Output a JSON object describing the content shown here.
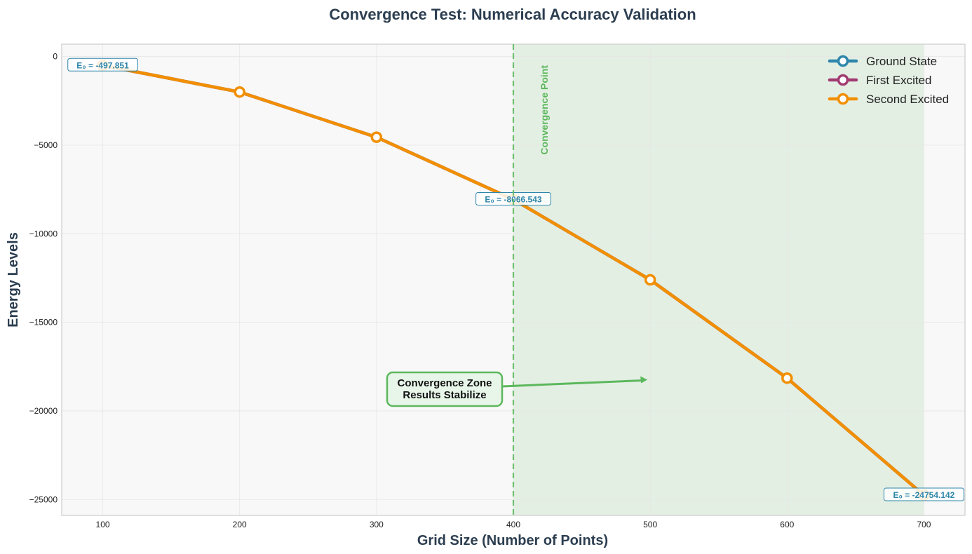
{
  "chart_data": {
    "type": "line",
    "title": "Convergence Test: Numerical Accuracy Validation",
    "xlabel": "Grid Size (Number of Points)",
    "ylabel": "Energy Levels",
    "xlim": [
      70,
      730
    ],
    "ylim": [
      -25900,
      700
    ],
    "xticks": [
      100,
      200,
      300,
      400,
      500,
      600,
      700
    ],
    "yticks": [
      0,
      -5000,
      -10000,
      -15000,
      -20000,
      -25000
    ],
    "ytick_labels": [
      "0",
      "−5000",
      "−10000",
      "−15000",
      "−20000",
      "−25000"
    ],
    "grid": true,
    "legend_position": "top-right",
    "x": [
      100,
      200,
      300,
      400,
      500,
      600,
      700
    ],
    "series": [
      {
        "name": "Ground State",
        "color": "#2e86ab",
        "values": [
          -497.851,
          -2000,
          -4550,
          -8066.543,
          -12600,
          -18150,
          -24754.142
        ]
      },
      {
        "name": "First Excited",
        "color": "#a23b72",
        "values": [
          -497.851,
          -2000,
          -4550,
          -8066.543,
          -12600,
          -18150,
          -24754.142
        ]
      },
      {
        "name": "Second Excited",
        "color": "#f18f01",
        "values": [
          -497.851,
          -2000,
          -4550,
          -8066.543,
          -12600,
          -18150,
          -24754.142
        ]
      }
    ],
    "data_labels": [
      {
        "x": 100,
        "y": -497.851,
        "text": "E₀ = -497.851"
      },
      {
        "x": 400,
        "y": -8066.543,
        "text": "E₀ = -8066.543"
      },
      {
        "x": 700,
        "y": -24754.142,
        "text": "E₀ = -24754.142"
      }
    ],
    "convergence_line": {
      "x": 400,
      "label": "Convergence Point",
      "color": "#5cb85c"
    },
    "convergence_zone": {
      "x_start": 400,
      "x_end": 700
    },
    "annotation": {
      "line1": "Convergence Zone",
      "line2": "Results Stabilize",
      "arrow_to_x": 500,
      "arrow_to_y": -18200
    }
  }
}
